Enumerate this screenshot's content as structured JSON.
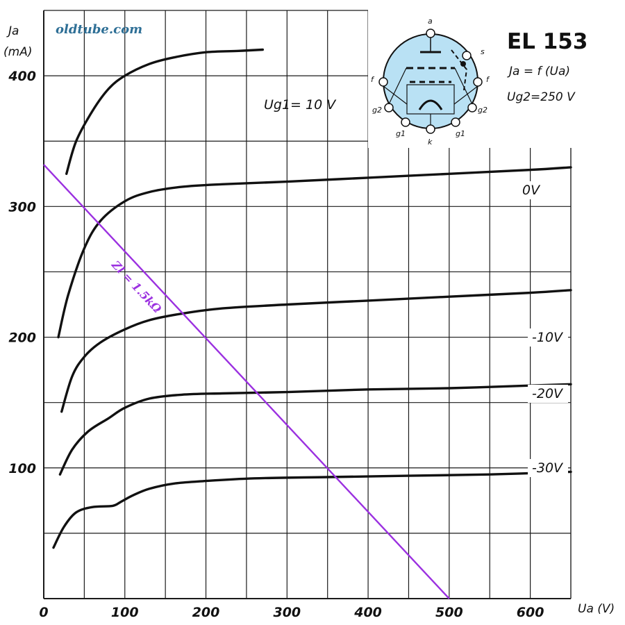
{
  "watermark": "oldtube.com",
  "legend_box": {
    "title": "EL 153",
    "line1": "Ja = f (Ua)",
    "line2": "Ug2=250 V",
    "pins": {
      "a": "a",
      "s": "s",
      "f_left": "f",
      "f_right": "f",
      "g2_left": "g2",
      "g2_right": "g2",
      "g1_left": "g1",
      "g1_right": "g1",
      "k": "k"
    }
  },
  "chart_data": {
    "type": "line",
    "title": "EL 153",
    "subtitle": "Ja = f (Ua), Ug2 = 250 V",
    "ylabel_top": "Ja",
    "ylabel_unit": "(mA)",
    "xlabel": "Ua (V)",
    "xlim": [
      0,
      650
    ],
    "ylim": [
      0,
      450
    ],
    "x_ticks": [
      0,
      100,
      200,
      300,
      400,
      500,
      600
    ],
    "y_ticks": [
      100,
      200,
      300,
      400
    ],
    "grid": true,
    "series": [
      {
        "name": "Ug1= 10 V",
        "x": [
          28,
          40,
          60,
          80,
          100,
          130,
          160,
          200,
          240,
          270
        ],
        "y": [
          325,
          350,
          373,
          390,
          400,
          409,
          414,
          418,
          419,
          420
        ]
      },
      {
        "name": "0V",
        "x": [
          18,
          30,
          50,
          70,
          100,
          130,
          170,
          220,
          300,
          400,
          500,
          600,
          650
        ],
        "y": [
          200,
          232,
          268,
          289,
          304,
          311,
          315,
          317,
          319,
          322,
          325,
          328,
          330
        ]
      },
      {
        "name": "-10V",
        "x": [
          22,
          35,
          50,
          70,
          100,
          130,
          170,
          220,
          300,
          400,
          500,
          600,
          650
        ],
        "y": [
          143,
          170,
          185,
          196,
          206,
          213,
          218,
          222,
          225,
          228,
          231,
          234,
          236
        ]
      },
      {
        "name": "-20V",
        "x": [
          20,
          35,
          55,
          80,
          100,
          130,
          170,
          220,
          300,
          400,
          500,
          600,
          650
        ],
        "y": [
          95,
          114,
          128,
          138,
          146,
          153,
          156,
          157,
          158,
          160,
          161,
          163,
          164
        ]
      },
      {
        "name": "-30V",
        "x": [
          12,
          25,
          40,
          60,
          85,
          95,
          110,
          130,
          160,
          200,
          260,
          350,
          450,
          550,
          650
        ],
        "y": [
          39,
          55,
          66,
          70,
          71,
          74,
          79,
          84,
          88,
          90,
          92,
          93,
          94,
          95,
          97
        ]
      }
    ],
    "load_line": {
      "label": "Zl = 1.5kΩ",
      "x": [
        0,
        500
      ],
      "y": [
        332,
        0
      ],
      "color": "#9b30e0"
    }
  }
}
